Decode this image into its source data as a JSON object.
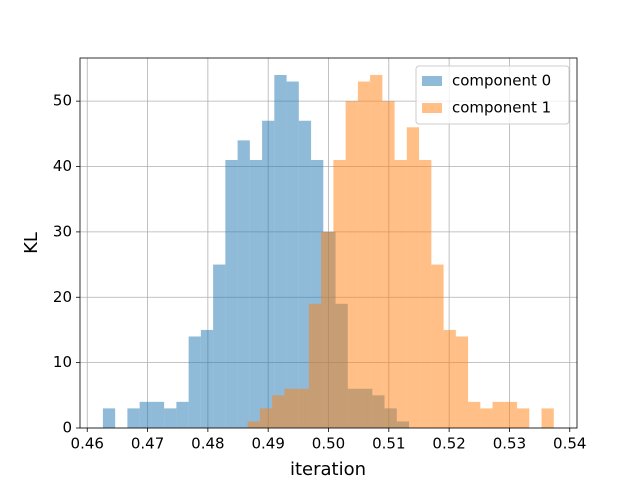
{
  "chart_data": {
    "type": "histogram",
    "xlabel": "iteration",
    "ylabel": "KL",
    "series": [
      {
        "name": "component 0",
        "color": "#1f77b4",
        "opacity": 0.5,
        "bins": [
          0.4626,
          0.46463,
          0.46666,
          0.46869,
          0.47072,
          0.47275,
          0.47478,
          0.47681,
          0.47884,
          0.48087,
          0.4829,
          0.48493,
          0.48696,
          0.48899,
          0.49102,
          0.49305,
          0.49508,
          0.49711,
          0.49914,
          0.50117,
          0.5032,
          0.50523,
          0.50726,
          0.50929,
          0.51132,
          0.51335
        ],
        "values": [
          3,
          0,
          3,
          4,
          4,
          3,
          4,
          14,
          15,
          25,
          41,
          44,
          41,
          47,
          54,
          53,
          47,
          41,
          30,
          19,
          6,
          6,
          5,
          3,
          1
        ]
      },
      {
        "name": "component 1",
        "color": "#ff7f0e",
        "opacity": 0.5,
        "bins": [
          0.4866,
          0.48863,
          0.49066,
          0.49269,
          0.49472,
          0.49675,
          0.49878,
          0.50081,
          0.50284,
          0.50487,
          0.5069,
          0.50893,
          0.51096,
          0.51299,
          0.51502,
          0.51705,
          0.51908,
          0.52111,
          0.52314,
          0.52517,
          0.5272,
          0.52923,
          0.53126,
          0.53329,
          0.53532,
          0.53735
        ],
        "values": [
          1,
          3,
          5,
          6,
          6,
          19,
          30,
          41,
          50,
          53,
          54,
          50,
          41,
          46,
          41,
          25,
          15,
          14,
          4,
          3,
          4,
          4,
          3,
          0,
          3
        ]
      }
    ],
    "xlim": [
      0.4588,
      0.5412
    ],
    "ylim": [
      0,
      56.6
    ],
    "xticks": [
      0.46,
      0.47,
      0.48,
      0.49,
      {
        "value": 0.5,
        "label": "0.50"
      },
      0.51,
      0.52,
      0.53,
      0.54
    ],
    "yticks": [
      0,
      10,
      20,
      30,
      40,
      50
    ],
    "grid": true,
    "legend": "upper right"
  }
}
